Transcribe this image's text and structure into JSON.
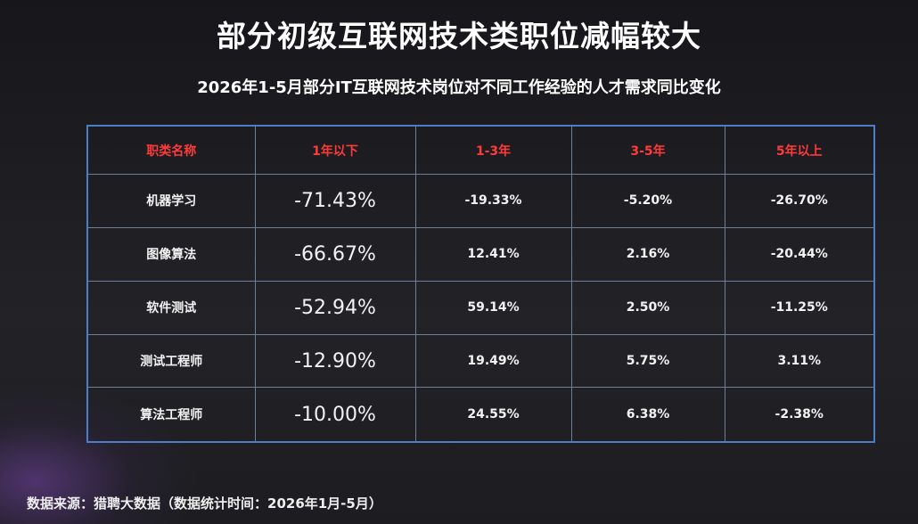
{
  "title": "部分初级互联网技术类职位减幅较大",
  "subtitle": "2026年1-5月部分IT互联网技术岗位对不同工作经验的人才需求同比变化",
  "table": {
    "header": [
      "职类名称",
      "1年以下",
      "1-3年",
      "3-5年",
      "5年以上"
    ],
    "rows": [
      [
        "机器学习",
        "-71.43%",
        "-19.33%",
        "-5.20%",
        "-26.70%"
      ],
      [
        "图像算法",
        "-66.67%",
        "12.41%",
        "2.16%",
        "-20.44%"
      ],
      [
        "软件测试",
        "-52.94%",
        "59.14%",
        "2.50%",
        "-11.25%"
      ],
      [
        "测试工程师",
        "-12.90%",
        "19.49%",
        "5.75%",
        "3.11%"
      ],
      [
        "算法工程师",
        "-10.00%",
        "24.55%",
        "6.38%",
        "-2.38%"
      ]
    ]
  },
  "source": "数据来源：猎聘大数据（数据统计时间：2026年1月-5月）"
}
